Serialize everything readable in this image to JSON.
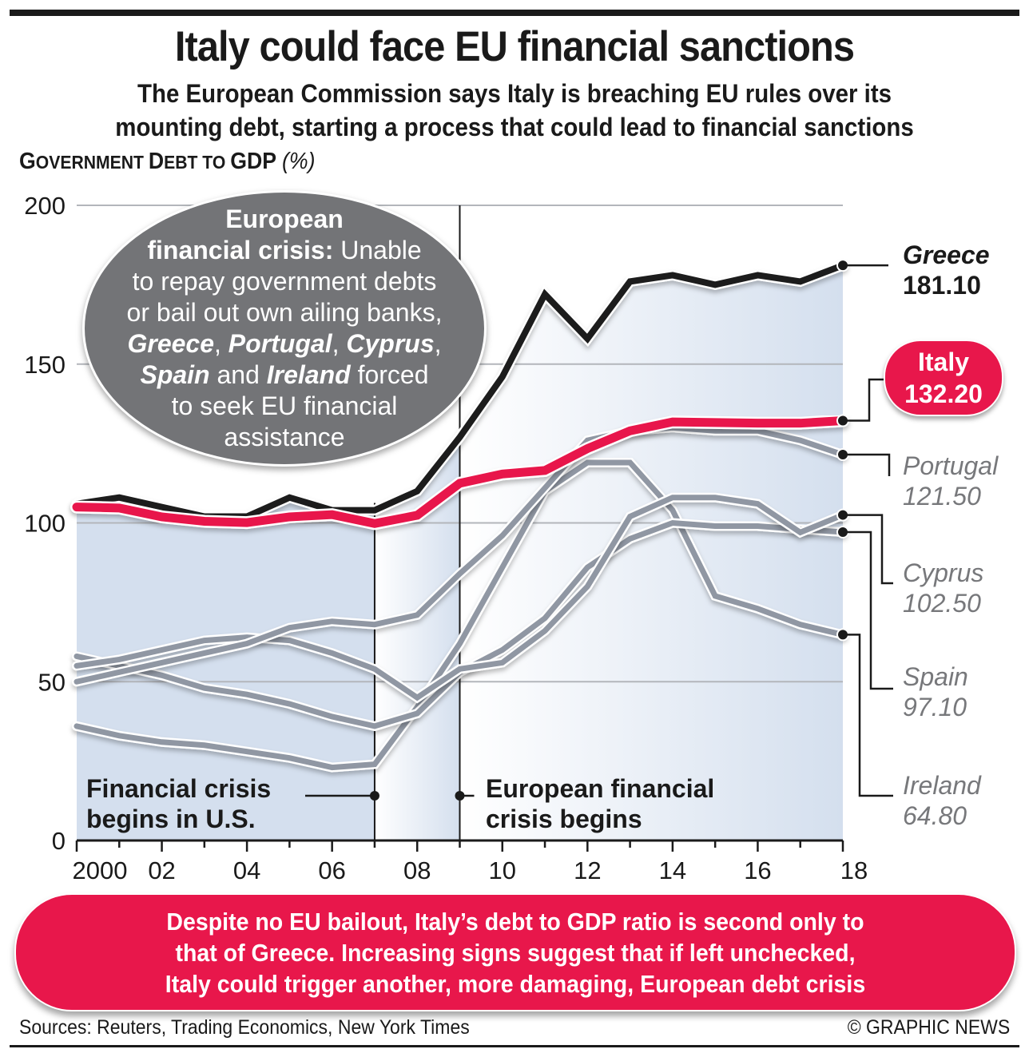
{
  "header": {
    "title": "Italy could face EU financial sanctions",
    "subtitle_line1": "The European Commission says Italy is breaching EU rules over its",
    "subtitle_line2": "mounting debt, starting a process that could lead to financial sanctions"
  },
  "bubble": {
    "bold_intro_1": "European",
    "bold_intro_2": "financial crisis:",
    "text_1": " Unable",
    "text_2": "to repay government debts",
    "text_3": "or bail out own ailing banks,",
    "country_1": "Greece",
    "sep_1": ", ",
    "country_2": "Portugal",
    "sep_2": ", ",
    "country_3": "Cyprus",
    "sep_3": ",",
    "country_4": "Spain",
    "sep_4": " and ",
    "country_5": "Ireland",
    "text_4": " forced",
    "text_5": "to seek EU financial",
    "text_6": "assistance"
  },
  "annotations": {
    "us_crisis_1": "Financial crisis",
    "us_crisis_2": "begins in U.S.",
    "eu_crisis_1": "European financial",
    "eu_crisis_2": "crisis begins"
  },
  "footer": {
    "callout_line1": "Despite no EU bailout, Italy’s debt to GDP ratio is second only to",
    "callout_line2": "that of Greece. Increasing signs suggest that if left unchecked,",
    "callout_line3": "Italy could trigger another, more damaging, European debt crisis",
    "sources": "Sources: Reuters, Trading Economics, New York Times",
    "credit": "© GRAPHIC NEWS"
  },
  "colors": {
    "italy": "#e8174b",
    "greece": "#1a1a1a",
    "others": "#9097a3",
    "bubble": "#737477",
    "plot_bg": "#d4dfee"
  },
  "chart_data": {
    "type": "line",
    "title": "Government Debt to GDP",
    "ylabel_main_G": "G",
    "ylabel_main_rest1": "OVERNMENT ",
    "ylabel_main_D": "D",
    "ylabel_main_rest2": "EBT TO ",
    "ylabel_main_end": "GDP",
    "ylabel_unit": "(%)",
    "ylim": [
      0,
      200
    ],
    "yticks": [
      0,
      50,
      100,
      150,
      200
    ],
    "ytick_labels": [
      "0",
      "50",
      "100",
      "150",
      "200"
    ],
    "xlim": [
      2000,
      2018
    ],
    "xtick_labels": [
      {
        "year": 2000,
        "label": "2000"
      },
      {
        "year": 2002,
        "label": "02"
      },
      {
        "year": 2004,
        "label": "04"
      },
      {
        "year": 2006,
        "label": "06"
      },
      {
        "year": 2008,
        "label": "08"
      },
      {
        "year": 2010,
        "label": "10"
      },
      {
        "year": 2012,
        "label": "12"
      },
      {
        "year": 2014,
        "label": "14"
      },
      {
        "year": 2016,
        "label": "16"
      },
      {
        "year": 2018,
        "label": "18"
      }
    ],
    "x": [
      2000,
      2001,
      2002,
      2003,
      2004,
      2005,
      2006,
      2007,
      2008,
      2009,
      2010,
      2011,
      2012,
      2013,
      2014,
      2015,
      2016,
      2017,
      2018
    ],
    "events": [
      {
        "year": 2007,
        "name": "Financial crisis begins in U.S."
      },
      {
        "year": 2009,
        "name": "European financial crisis begins"
      }
    ],
    "grid": true,
    "series": [
      {
        "name": "Ireland",
        "final_label": "64.80",
        "values": [
          36,
          33,
          31,
          30,
          28,
          26,
          23,
          24,
          42,
          62,
          86,
          110,
          119,
          119,
          104,
          77,
          73,
          68,
          64.8
        ]
      },
      {
        "name": "Spain",
        "final_label": "97.10",
        "values": [
          58,
          55,
          52,
          48,
          46,
          43,
          39,
          36,
          40,
          53,
          60,
          70,
          86,
          95,
          100,
          99,
          99,
          98,
          97.1
        ]
      },
      {
        "name": "Cyprus",
        "final_label": "102.50",
        "values": [
          55,
          57,
          60,
          63,
          64,
          63,
          59,
          54,
          45,
          54,
          56,
          66,
          80,
          102,
          108,
          108,
          106,
          97,
          102.5
        ]
      },
      {
        "name": "Portugal",
        "final_label": "121.50",
        "values": [
          50,
          53,
          56,
          59,
          62,
          67,
          69,
          68,
          71,
          84,
          96,
          111,
          126,
          129,
          130,
          129,
          129,
          126,
          121.5
        ]
      },
      {
        "name": "Greece",
        "final_label": "181.10",
        "values": [
          106,
          108,
          105,
          102,
          102,
          108,
          104,
          104,
          110,
          127,
          146,
          172,
          158,
          176,
          178,
          175,
          178,
          176,
          181.1
        ]
      },
      {
        "name": "Italy",
        "final_label": "132.20",
        "values": [
          105,
          104.7,
          101.9,
          100.5,
          100.1,
          101.9,
          102.6,
          99.8,
          102.4,
          112.5,
          115.4,
          116.5,
          123.4,
          129,
          131.8,
          131.6,
          131.4,
          131.4,
          132.2
        ]
      }
    ]
  }
}
